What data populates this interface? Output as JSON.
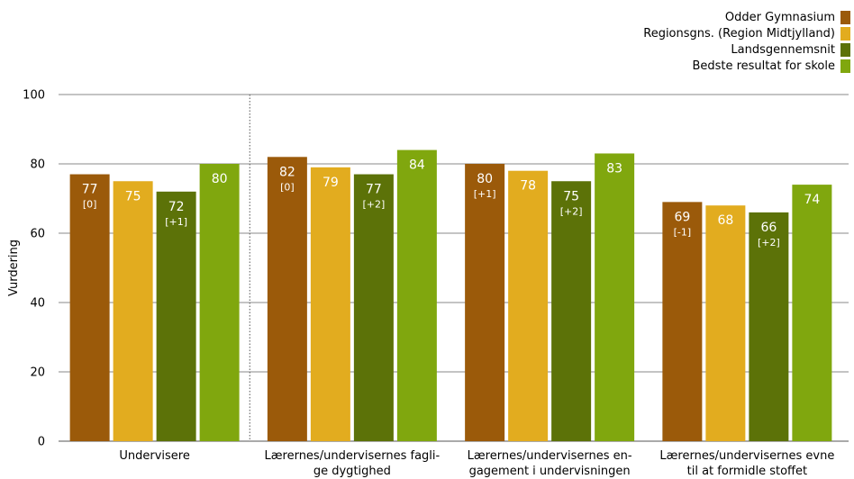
{
  "chart_data": {
    "type": "bar",
    "ylabel": "Vurdering",
    "ylim": [
      0,
      100
    ],
    "yticks": [
      0,
      20,
      40,
      60,
      80,
      100
    ],
    "grid": true,
    "legend_position": "top-right",
    "categories": [
      [
        "Undervisere"
      ],
      [
        "Lærernes/undervisernes fagli-",
        "ge dygtighed"
      ],
      [
        "Lærernes/undervisernes en-",
        "gagement i undervisningen"
      ],
      [
        "Lærernes/undervisernes evne",
        "til at formidle stoffet"
      ]
    ],
    "series": [
      {
        "name": "Odder Gymnasium",
        "color": "#9b5a0a",
        "values": [
          77,
          82,
          80,
          69
        ],
        "labels": [
          "77",
          "82",
          "80",
          "69"
        ],
        "sublabels": [
          "[0]",
          "[0]",
          "[+1]",
          "[-1]"
        ]
      },
      {
        "name": "Regionsgns. (Region Midtjylland)",
        "color": "#e2ac1f",
        "values": [
          75,
          79,
          78,
          68
        ],
        "labels": [
          "75",
          "79",
          "78",
          "68"
        ],
        "sublabels": [
          "",
          "",
          "",
          ""
        ]
      },
      {
        "name": "Landsgennemsnit",
        "color": "#5c7208",
        "values": [
          72,
          77,
          75,
          66
        ],
        "labels": [
          "72",
          "77",
          "75",
          "66"
        ],
        "sublabels": [
          "[+1]",
          "[+2]",
          "[+2]",
          "[+2]"
        ]
      },
      {
        "name": "Bedste resultat for skole",
        "color": "#80a70e",
        "values": [
          80,
          84,
          83,
          74
        ],
        "labels": [
          "80",
          "84",
          "83",
          "74"
        ],
        "sublabels": [
          "",
          "",
          "",
          ""
        ]
      }
    ]
  }
}
